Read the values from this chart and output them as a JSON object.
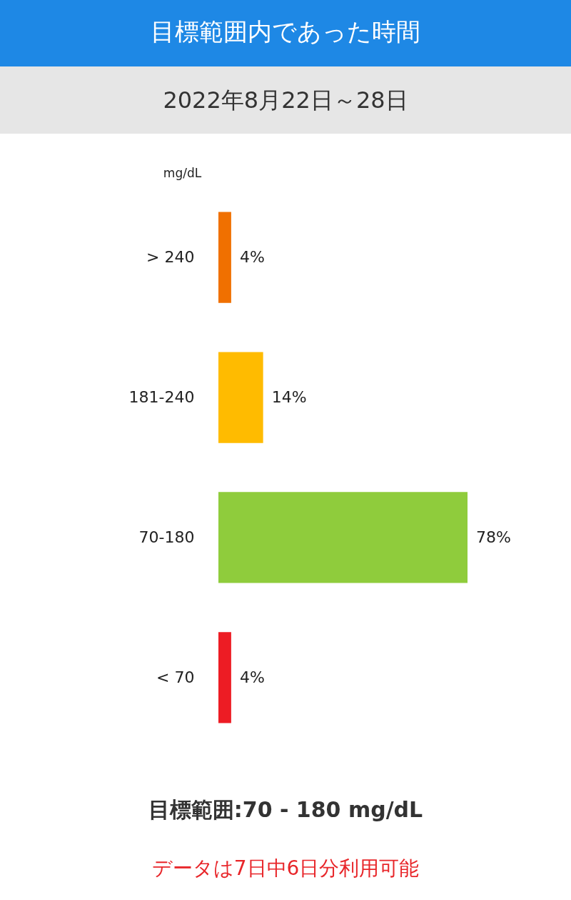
{
  "chart_data": {
    "type": "bar",
    "orientation": "horizontal",
    "title": "目標範囲内であった時間",
    "subtitle": "2022年8月22日～28日",
    "ylabel": "mg/dL",
    "categories": [
      "> 240",
      "181-240",
      "70-180",
      "< 70"
    ],
    "values": [
      4,
      14,
      78,
      4
    ],
    "colors": [
      "#f07000",
      "#ffbb00",
      "#8fcc3c",
      "#ed1c24"
    ],
    "value_labels": [
      "4%",
      "14%",
      "78%",
      "4%"
    ],
    "annotations": [
      "目標範囲:70 - 180 mg/dL",
      "データは7日中6日分利用可能"
    ]
  }
}
